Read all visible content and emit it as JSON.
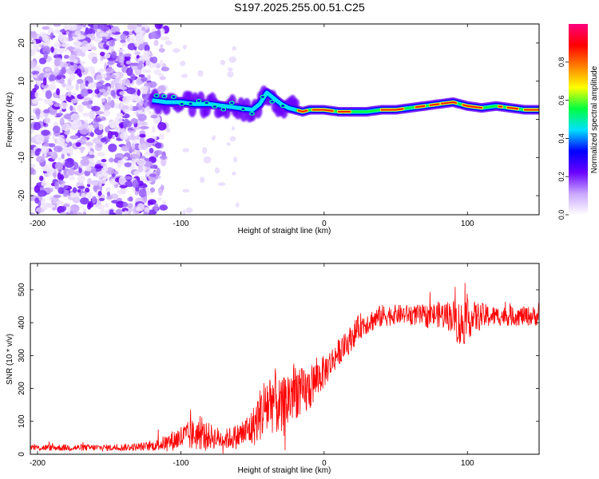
{
  "title": "S197.2025.255.00.51.C25",
  "chart_data": [
    {
      "type": "heatmap",
      "title": "S197.2025.255.00.51.C25",
      "xlabel": "Height of straight line (km)",
      "ylabel": "Frequency (Hz)",
      "xlim": [
        -205,
        150
      ],
      "ylim": [
        -25,
        25
      ],
      "x_ticks": [
        -200,
        -100,
        0,
        100
      ],
      "y_ticks": [
        20,
        10,
        0,
        -10,
        -20
      ],
      "colorbar": {
        "label": "Normalized spectral amplitude",
        "range": [
          0.0,
          1.0
        ],
        "ticks": [
          0.0,
          0.2,
          0.4,
          0.6,
          0.8
        ],
        "colors": [
          "#ffffff",
          "#c9a6ff",
          "#6a00ff",
          "#0000ff",
          "#00e0ff",
          "#00ff40",
          "#ffff00",
          "#ff8000",
          "#ff0000",
          "#ff0080"
        ]
      },
      "ridge": {
        "name": "dominant frequency",
        "x": [
          -120,
          -110,
          -100,
          -90,
          -80,
          -70,
          -60,
          -50,
          -45,
          -40,
          -35,
          -30,
          -25,
          -20,
          -15,
          -10,
          0,
          10,
          20,
          30,
          40,
          50,
          60,
          70,
          80,
          90,
          100,
          110,
          120,
          130,
          140,
          150
        ],
        "y": [
          5,
          4.5,
          4.5,
          4,
          4,
          3.5,
          3,
          2.5,
          4,
          7,
          5.5,
          4,
          3,
          2.5,
          2,
          2.5,
          2.5,
          2,
          2,
          2,
          2.5,
          2.5,
          3,
          3.5,
          4,
          4.5,
          3.5,
          3,
          3.5,
          3,
          2.5,
          2.5
        ]
      },
      "noise_region": {
        "x_range": [
          -205,
          -110
        ],
        "y_range": [
          -25,
          25
        ]
      }
    },
    {
      "type": "line",
      "xlabel": "Height of straight line (km)",
      "ylabel": "SNR (10 * v/v)",
      "xlim": [
        -205,
        150
      ],
      "ylim": [
        0,
        580
      ],
      "x_ticks": [
        -200,
        -100,
        0,
        100
      ],
      "y_ticks": [
        0,
        100,
        200,
        300,
        400,
        500
      ],
      "series": [
        {
          "name": "SNR",
          "color": "#ff0000",
          "x": [
            -205,
            -190,
            -170,
            -150,
            -130,
            -120,
            -110,
            -100,
            -90,
            -80,
            -70,
            -60,
            -50,
            -45,
            -40,
            -35,
            -30,
            -25,
            -20,
            -15,
            -10,
            -5,
            0,
            5,
            10,
            15,
            20,
            25,
            30,
            35,
            40,
            50,
            60,
            70,
            80,
            90,
            95,
            100,
            110,
            120,
            130,
            140,
            150
          ],
          "mean": [
            20,
            20,
            20,
            20,
            22,
            25,
            35,
            50,
            60,
            55,
            45,
            55,
            80,
            120,
            150,
            170,
            130,
            170,
            200,
            180,
            200,
            230,
            250,
            280,
            310,
            330,
            360,
            390,
            400,
            410,
            420,
            425,
            425,
            420,
            425,
            420,
            390,
            410,
            420,
            420,
            420,
            420,
            420
          ],
          "amp": [
            10,
            10,
            10,
            10,
            12,
            15,
            25,
            40,
            50,
            40,
            30,
            40,
            60,
            80,
            110,
            100,
            90,
            100,
            90,
            80,
            70,
            60,
            50,
            45,
            40,
            40,
            40,
            40,
            35,
            35,
            35,
            30,
            30,
            35,
            40,
            50,
            80,
            60,
            40,
            30,
            30,
            30,
            30
          ]
        }
      ]
    }
  ]
}
